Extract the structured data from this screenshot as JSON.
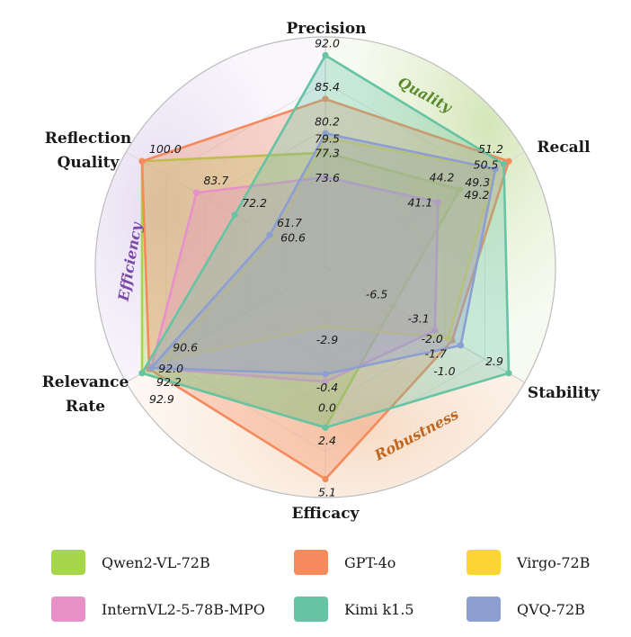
{
  "chart_data": {
    "type": "radar",
    "axes": [
      {
        "key": "precision",
        "label": [
          "Precision"
        ]
      },
      {
        "key": "recall",
        "label": [
          "Recall"
        ]
      },
      {
        "key": "stability",
        "label": [
          "Stability"
        ]
      },
      {
        "key": "efficacy",
        "label": [
          "Efficacy"
        ]
      },
      {
        "key": "relevance_rate",
        "label": [
          "Relevance",
          "Rate"
        ]
      },
      {
        "key": "reflection_quality",
        "label": [
          "Reflection",
          "Quality"
        ]
      }
    ],
    "groups": [
      {
        "name": "Quality",
        "color": "#5a8a2c"
      },
      {
        "name": "Robustness",
        "color": "#c0661e"
      },
      {
        "name": "Efficiency",
        "color": "#7a4aa8"
      }
    ],
    "series": [
      {
        "name": "Qwen2-VL-72B",
        "color": "#a6d64a",
        "values": {
          "precision": 77.3,
          "recall": 44.2,
          "stability": -6.5,
          "efficacy": 2.4,
          "relevance_rate": 92.9,
          "reflection_quality": 100.0
        },
        "labels": {
          "precision": "77.3",
          "recall": "44.2",
          "stability": "-6.5",
          "efficacy": "2.4",
          "relevance_rate": "92.9",
          "reflection_quality": "100.0"
        }
      },
      {
        "name": "GPT-4o",
        "color": "#f58a5c",
        "values": {
          "precision": 85.4,
          "recall": 51.2,
          "stability": -1.7,
          "efficacy": 5.1,
          "relevance_rate": 92.2,
          "reflection_quality": 100.0
        },
        "labels": {
          "precision": "85.4",
          "recall": "51.2",
          "stability": "-1.7",
          "efficacy": "5.1",
          "relevance_rate": "92.2",
          "reflection_quality": ""
        }
      },
      {
        "name": "Virgo-72B",
        "color": "#fcd434",
        "values": {
          "precision": 79.5,
          "recall": 49.2,
          "stability": -2.0,
          "efficacy": -2.9,
          "relevance_rate": 90.6,
          "reflection_quality": 60.6
        },
        "labels": {
          "precision": "79.5",
          "recall": "49.2",
          "stability": "-2.0",
          "efficacy": "-2.9",
          "relevance_rate": "90.6",
          "reflection_quality": "60.6"
        }
      },
      {
        "name": "InternVL2-5-78B-MPO",
        "color": "#e890c8",
        "values": {
          "precision": 73.6,
          "recall": 41.1,
          "stability": -3.1,
          "efficacy": 0.0,
          "relevance_rate": 92.0,
          "reflection_quality": 83.7
        },
        "labels": {
          "precision": "73.6",
          "recall": "41.1",
          "stability": "-3.1",
          "efficacy": "0.0",
          "relevance_rate": "92.0",
          "reflection_quality": "83.7"
        }
      },
      {
        "name": "Kimi k1.5",
        "color": "#66c4a4",
        "values": {
          "precision": 92.0,
          "recall": 50.5,
          "stability": 2.9,
          "efficacy": 2.4,
          "relevance_rate": 92.9,
          "reflection_quality": 72.2
        },
        "labels": {
          "precision": "92.0",
          "recall": "50.5",
          "stability": "2.9",
          "efficacy": "",
          "relevance_rate": "",
          "reflection_quality": "72.2"
        }
      },
      {
        "name": "QVQ-72B",
        "color": "#8c9fd0",
        "values": {
          "precision": 80.2,
          "recall": 49.3,
          "stability": -1.0,
          "efficacy": -0.4,
          "relevance_rate": 92.0,
          "reflection_quality": 61.7
        },
        "labels": {
          "precision": "80.2",
          "recall": "49.3",
          "stability": "-1.0",
          "efficacy": "-0.4",
          "relevance_rate": "",
          "reflection_quality": "61.7"
        }
      }
    ],
    "legend": [
      "Qwen2-VL-72B",
      "GPT-4o",
      "Virgo-72B",
      "InternVL2-5-78B-MPO",
      "Kimi k1.5",
      "QVQ-72B"
    ]
  }
}
